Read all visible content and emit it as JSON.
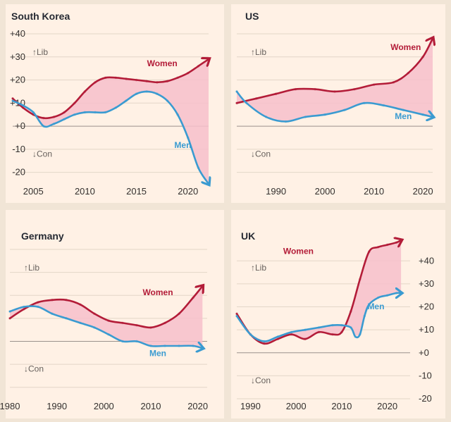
{
  "colors": {
    "background": "#fff1e5",
    "women": "#b31c38",
    "men": "#3a9bd1",
    "gap_fill": "#f7bfcb",
    "grid": "#e3d6c8",
    "zero": "#9a918b"
  },
  "chart_data": [
    {
      "type": "line",
      "title": "South Korea",
      "xlim": [
        2003,
        2022
      ],
      "ylim": [
        -25,
        40
      ],
      "yticks": [
        "+40",
        "+30",
        "+20",
        "+10",
        "+0",
        "-10",
        "-20"
      ],
      "ytick_values": [
        40,
        30,
        20,
        10,
        0,
        -10,
        -20
      ],
      "xticks": [
        "2005",
        "2010",
        "2015",
        "2020"
      ],
      "xtick_values": [
        2005,
        2010,
        2015,
        2020
      ],
      "ytick_side": "left",
      "lib_label": "↑Lib",
      "con_label": "↓Con",
      "series": [
        {
          "name": "Women",
          "x": [
            2003,
            2004,
            2005,
            2006,
            2007,
            2008,
            2009,
            2010,
            2011,
            2012,
            2013,
            2014,
            2015,
            2016,
            2017,
            2018,
            2019,
            2020,
            2021,
            2022
          ],
          "values": [
            12,
            8,
            5,
            3.5,
            4,
            6,
            10,
            15,
            19,
            21,
            21,
            20.5,
            20,
            19.5,
            19,
            19.5,
            21,
            23,
            26,
            29
          ]
        },
        {
          "name": "Men",
          "x": [
            2003,
            2004,
            2005,
            2006,
            2007,
            2008,
            2009,
            2010,
            2011,
            2012,
            2013,
            2014,
            2015,
            2016,
            2017,
            2018,
            2019,
            2020,
            2021,
            2022
          ],
          "values": [
            11,
            9,
            6,
            0,
            1,
            3,
            5,
            6,
            6,
            6,
            8,
            11,
            14,
            15,
            14,
            11,
            5,
            -5,
            -18,
            -25
          ]
        }
      ],
      "women_label_at": [
        2017.5,
        26
      ],
      "men_label_at": [
        2019.5,
        -9.5
      ]
    },
    {
      "type": "line",
      "title": "US",
      "xlim": [
        1982,
        2022
      ],
      "ylim": [
        -25,
        40
      ],
      "yticks": [],
      "ytick_values": [],
      "xticks": [
        "1990",
        "2000",
        "2010",
        "2020"
      ],
      "xtick_values": [
        1990,
        2000,
        2010,
        2020
      ],
      "ytick_side": "none",
      "lib_label": "↑Lib",
      "con_label": "↓Con",
      "series": [
        {
          "name": "Women",
          "x": [
            1982,
            1986,
            1990,
            1994,
            1998,
            2002,
            2006,
            2010,
            2014,
            2017,
            2020,
            2022
          ],
          "values": [
            10,
            12,
            14,
            16,
            16,
            15,
            16,
            18,
            19,
            23,
            30,
            38
          ]
        },
        {
          "name": "Men",
          "x": [
            1982,
            1984,
            1988,
            1992,
            1996,
            2000,
            2004,
            2008,
            2012,
            2016,
            2020,
            2022
          ],
          "values": [
            15,
            10,
            4,
            2,
            4,
            5,
            7,
            10,
            9,
            7,
            5,
            4
          ]
        }
      ],
      "women_label_at": [
        2016.5,
        33
      ],
      "men_label_at": [
        2016,
        3
      ]
    },
    {
      "type": "line",
      "title": "Germany",
      "xlim": [
        1980,
        2022
      ],
      "ylim": [
        -25,
        40
      ],
      "yticks": [],
      "ytick_values": [],
      "xticks": [
        "1980",
        "1990",
        "2000",
        "2010",
        "2020"
      ],
      "xtick_values": [
        1980,
        1990,
        2000,
        2010,
        2020
      ],
      "ytick_side": "none",
      "lib_label": "↑Lib",
      "con_label": "↓Con",
      "series": [
        {
          "name": "Women",
          "x": [
            1980,
            1983,
            1986,
            1989,
            1992,
            1995,
            1998,
            2001,
            2004,
            2007,
            2010,
            2013,
            2016,
            2019,
            2021
          ],
          "values": [
            10,
            14,
            17,
            18,
            18,
            16,
            12,
            9,
            8,
            7,
            6,
            8,
            12,
            19,
            24
          ]
        },
        {
          "name": "Men",
          "x": [
            1980,
            1983,
            1986,
            1989,
            1992,
            1995,
            1998,
            2001,
            2004,
            2007,
            2010,
            2013,
            2016,
            2019,
            2021
          ],
          "values": [
            13,
            15,
            15,
            12,
            10,
            8,
            6,
            3,
            0,
            0,
            -2,
            -2,
            -2,
            -2,
            -3
          ]
        }
      ],
      "women_label_at": [
        2011.5,
        20
      ],
      "men_label_at": [
        2011.5,
        -6.5
      ]
    },
    {
      "type": "line",
      "title": "UK",
      "xlim": [
        1987,
        2025
      ],
      "ylim": [
        -20,
        45
      ],
      "yticks": [
        "+40",
        "+30",
        "+20",
        "+10",
        "+0",
        "-10",
        "-20"
      ],
      "ytick_values": [
        40,
        30,
        20,
        10,
        0,
        -10,
        -20
      ],
      "xticks": [
        "1990",
        "2000",
        "2010",
        "2020"
      ],
      "xtick_values": [
        1990,
        2000,
        2010,
        2020
      ],
      "ytick_side": "right",
      "lib_label": "↑Lib",
      "con_label": "↓Con",
      "series": [
        {
          "name": "Women",
          "x": [
            1987,
            1990,
            1993,
            1996,
            1999,
            2002,
            2005,
            2008,
            2010,
            2012,
            2014,
            2016,
            2018,
            2020,
            2022,
            2023
          ],
          "values": [
            17,
            8,
            4,
            6,
            8,
            6,
            9,
            8,
            9,
            18,
            32,
            44,
            46,
            47,
            48,
            49
          ]
        },
        {
          "name": "Men",
          "x": [
            1987,
            1990,
            1993,
            1996,
            1999,
            2002,
            2005,
            2008,
            2010,
            2012,
            2013,
            2014,
            2015,
            2016,
            2018,
            2020,
            2022,
            2023
          ],
          "values": [
            16,
            8,
            5,
            7,
            9,
            10,
            11,
            12,
            12,
            11,
            7,
            8,
            16,
            21,
            24,
            25,
            26,
            26
          ]
        }
      ],
      "women_label_at": [
        2000.5,
        43
      ],
      "men_label_at": [
        2017.5,
        19
      ]
    }
  ],
  "labels": {
    "women": "Women",
    "men": "Men"
  }
}
